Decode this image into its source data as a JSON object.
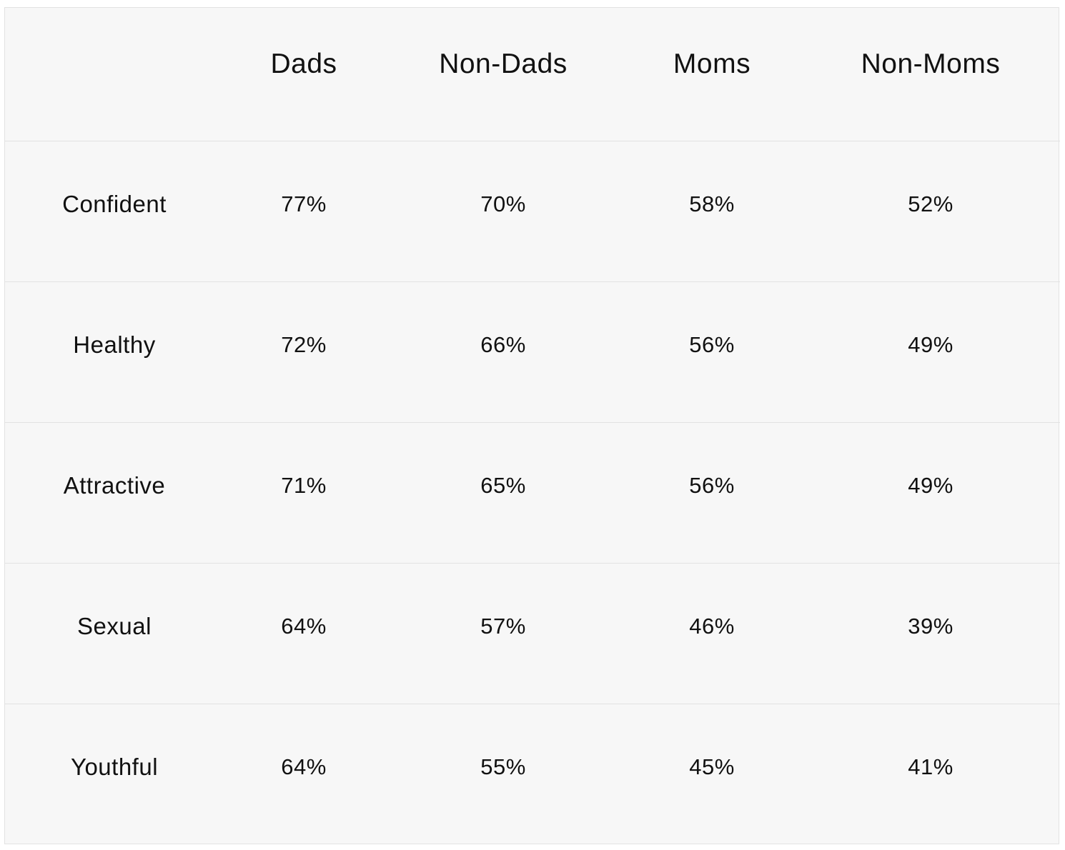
{
  "chart_data": {
    "type": "table",
    "columns": [
      "",
      "Dads",
      "Non-Dads",
      "Moms",
      "Non-Moms"
    ],
    "rows": [
      {
        "label": "Confident",
        "values": [
          "77%",
          "70%",
          "58%",
          "52%"
        ]
      },
      {
        "label": "Healthy",
        "values": [
          "72%",
          "66%",
          "56%",
          "49%"
        ]
      },
      {
        "label": "Attractive",
        "values": [
          "71%",
          "65%",
          "56%",
          "49%"
        ]
      },
      {
        "label": "Sexual",
        "values": [
          "64%",
          "57%",
          "46%",
          "39%"
        ]
      },
      {
        "label": "Youthful",
        "values": [
          "64%",
          "55%",
          "45%",
          "41%"
        ]
      }
    ]
  },
  "colors": {
    "background": "#f7f7f7",
    "border": "#e2e2e2",
    "text": "#111111"
  }
}
